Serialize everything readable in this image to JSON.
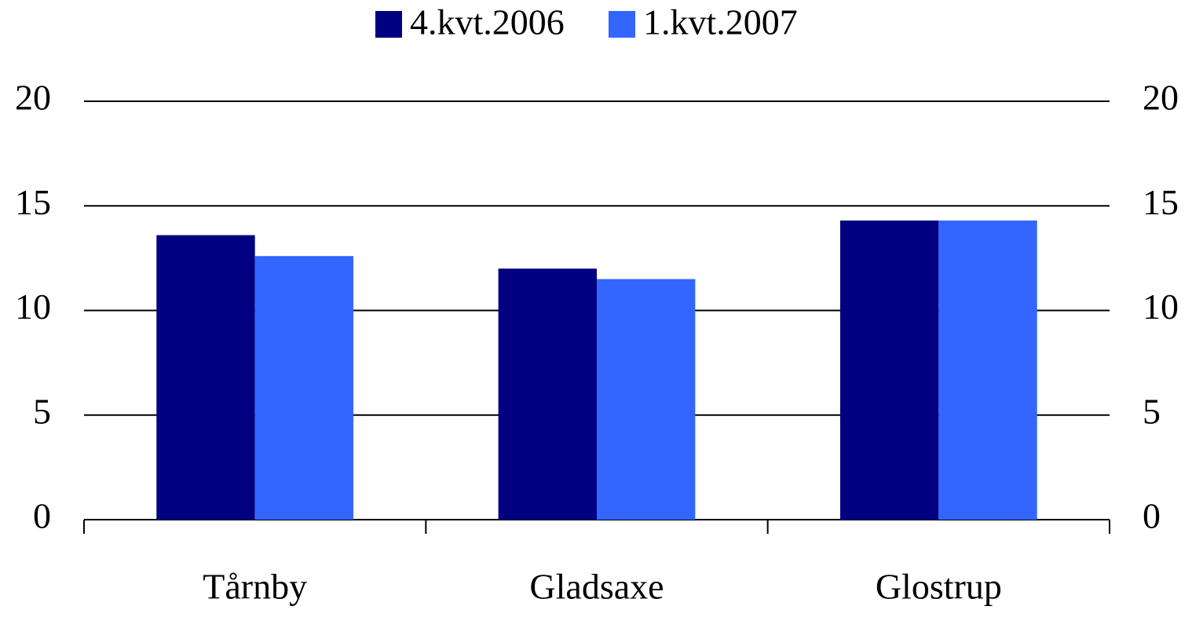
{
  "chart_data": {
    "type": "bar",
    "categories": [
      "Tårnby",
      "Gladsaxe",
      "Glostrup"
    ],
    "series": [
      {
        "name": "4.kvt.2006",
        "color": "#000080",
        "values": [
          13.6,
          12.0,
          14.3
        ]
      },
      {
        "name": "1.kvt.2007",
        "color": "#3366ff",
        "values": [
          12.6,
          11.5,
          14.3
        ]
      }
    ],
    "ylim": [
      0,
      20
    ],
    "yticks": [
      0,
      5,
      10,
      15,
      20
    ],
    "y2lim": [
      0,
      20
    ],
    "y2ticks": [
      0,
      5,
      10,
      15,
      20
    ],
    "grid": true,
    "legend": "top"
  }
}
